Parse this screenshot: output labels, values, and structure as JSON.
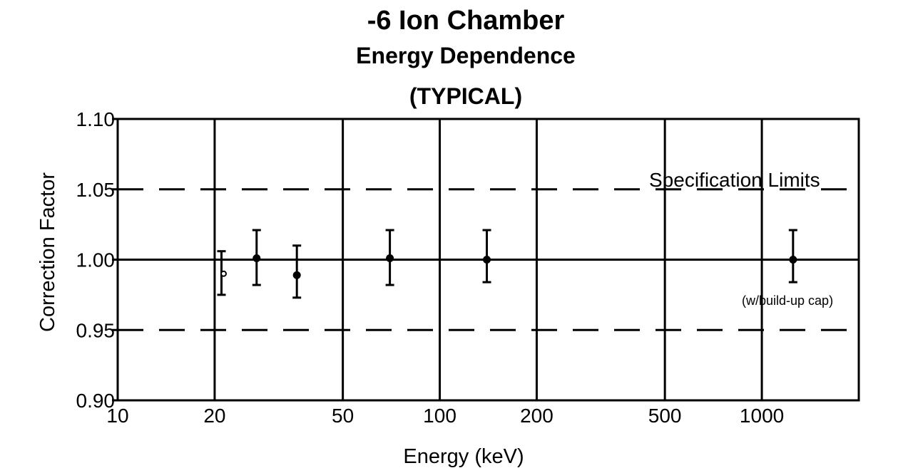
{
  "chart_data": {
    "type": "scatter",
    "title": "-6 Ion Chamber",
    "subtitle": "Energy Dependence",
    "subtitle2": "(TYPICAL)",
    "xlabel": "Energy (keV)",
    "ylabel": "Correction Factor",
    "xscale": "log",
    "xlim": [
      10,
      2000
    ],
    "ylim": [
      0.9,
      1.1
    ],
    "grid": true,
    "xticks": [
      10,
      20,
      50,
      100,
      200,
      500,
      1000
    ],
    "xtick_labels": [
      "10",
      "20",
      "50",
      "100",
      "200",
      "500",
      "1000"
    ],
    "yticks": [
      0.9,
      0.95,
      1.0,
      1.05,
      1.1
    ],
    "ytick_labels": [
      "0.90",
      "0.95",
      "1.00",
      "1.05",
      "1.10"
    ],
    "reference_line": 1.0,
    "spec_limits": [
      0.95,
      1.05
    ],
    "annotations": [
      "Specification Limits",
      "(w/build-up cap)"
    ],
    "points": [
      {
        "x": 21,
        "y": 0.99,
        "err_low": 0.975,
        "err_high": 1.006,
        "marker": "open"
      },
      {
        "x": 27,
        "y": 1.001,
        "err_low": 0.982,
        "err_high": 1.021,
        "marker": "filled"
      },
      {
        "x": 36,
        "y": 0.989,
        "err_low": 0.973,
        "err_high": 1.01,
        "marker": "filled"
      },
      {
        "x": 70,
        "y": 1.001,
        "err_low": 0.982,
        "err_high": 1.021,
        "marker": "filled"
      },
      {
        "x": 140,
        "y": 1.0,
        "err_low": 0.984,
        "err_high": 1.021,
        "marker": "filled"
      },
      {
        "x": 1250,
        "y": 1.0,
        "err_low": 0.984,
        "err_high": 1.021,
        "marker": "filled"
      }
    ]
  }
}
